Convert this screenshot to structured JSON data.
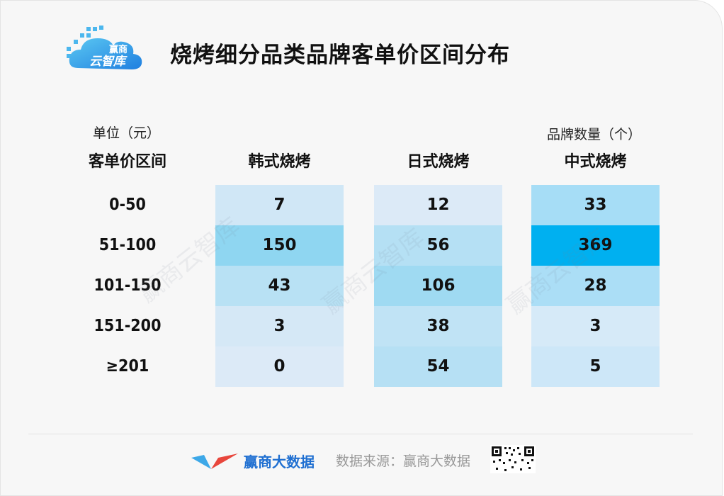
{
  "header": {
    "logo_text_top": "赢商",
    "logo_text_bottom": "云智库",
    "title": "烧烤细分品类品牌客单价区间分布"
  },
  "units": {
    "left": "单位（元）",
    "right": "品牌数量（个）"
  },
  "watermark": "赢商云智库",
  "chart_data": {
    "type": "heatmap",
    "title": "烧烤细分品类品牌客单价区间分布",
    "row_header": "客单价区间",
    "rows": [
      "0-50",
      "51-100",
      "101-150",
      "151-200",
      "≥201"
    ],
    "columns": [
      "韩式烧烤",
      "日式烧烤",
      "中式烧烤"
    ],
    "values": [
      [
        7,
        12,
        33
      ],
      [
        150,
        56,
        369
      ],
      [
        43,
        106,
        28
      ],
      [
        3,
        38,
        3
      ],
      [
        0,
        54,
        5
      ]
    ],
    "colors": {
      "韩式烧烤": {
        "low": "#dceaf7",
        "high": "#8fd6f1"
      },
      "日式烧烤": {
        "low": "#dceaf7",
        "high": "#9fdaf2"
      },
      "中式烧烤": {
        "low": "#d6eaf8",
        "high": "#00b0f0"
      }
    }
  },
  "footer": {
    "brand": "赢商大数据",
    "source": "数据来源：赢商大数据"
  }
}
